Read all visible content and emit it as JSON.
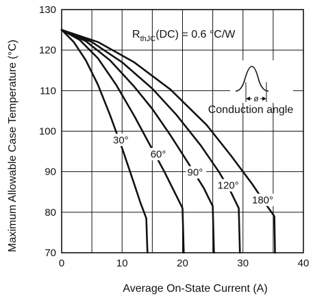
{
  "chart_data": {
    "type": "line",
    "xlabel": "Average On-State Current (A)",
    "ylabel": "Maximum Allowable Case Temperature (°C)",
    "xlim": [
      0,
      40
    ],
    "ylim": [
      70,
      130
    ],
    "xticks": [
      0,
      10,
      20,
      30,
      40
    ],
    "yticks": [
      70,
      80,
      90,
      100,
      110,
      120,
      130
    ],
    "grid": true,
    "annotation": {
      "r_main": "R",
      "r_sub": "thJC",
      "r_rest": "(DC) = 0.6 °C/W",
      "inset_label": "Conduction angle",
      "inset_symbol": "ø"
    },
    "series": [
      {
        "name": "30°",
        "points": [
          [
            0,
            125
          ],
          [
            2,
            122
          ],
          [
            4,
            117.5
          ],
          [
            6,
            111.5
          ],
          [
            8,
            104
          ],
          [
            10,
            95.8
          ],
          [
            12,
            87
          ],
          [
            13,
            82.5
          ],
          [
            14,
            78.5
          ],
          [
            14.2,
            70
          ]
        ]
      },
      {
        "name": "60°",
        "points": [
          [
            0,
            125
          ],
          [
            3,
            122.5
          ],
          [
            6,
            118
          ],
          [
            9,
            111.5
          ],
          [
            12,
            103.8
          ],
          [
            15,
            95.5
          ],
          [
            17,
            90
          ],
          [
            19,
            84
          ],
          [
            20,
            81
          ],
          [
            20.2,
            70
          ]
        ]
      },
      {
        "name": "90°",
        "points": [
          [
            0,
            125
          ],
          [
            4,
            122.2
          ],
          [
            8,
            117.5
          ],
          [
            12,
            111
          ],
          [
            15,
            105.5
          ],
          [
            18,
            99
          ],
          [
            21,
            92
          ],
          [
            23.5,
            86
          ],
          [
            25,
            81.5
          ],
          [
            25.2,
            70
          ]
        ]
      },
      {
        "name": "120°",
        "points": [
          [
            0,
            125
          ],
          [
            5,
            122
          ],
          [
            10,
            117
          ],
          [
            15,
            110.5
          ],
          [
            19,
            104
          ],
          [
            23,
            96.5
          ],
          [
            26,
            90
          ],
          [
            28,
            85
          ],
          [
            29.3,
            81
          ],
          [
            29.5,
            70
          ]
        ]
      },
      {
        "name": "180°",
        "points": [
          [
            0,
            125
          ],
          [
            6,
            122
          ],
          [
            12,
            117
          ],
          [
            18,
            110.3
          ],
          [
            24,
            101.5
          ],
          [
            28,
            94
          ],
          [
            31.5,
            87
          ],
          [
            34,
            81.5
          ],
          [
            35.2,
            79
          ],
          [
            35.3,
            70
          ]
        ]
      }
    ]
  }
}
